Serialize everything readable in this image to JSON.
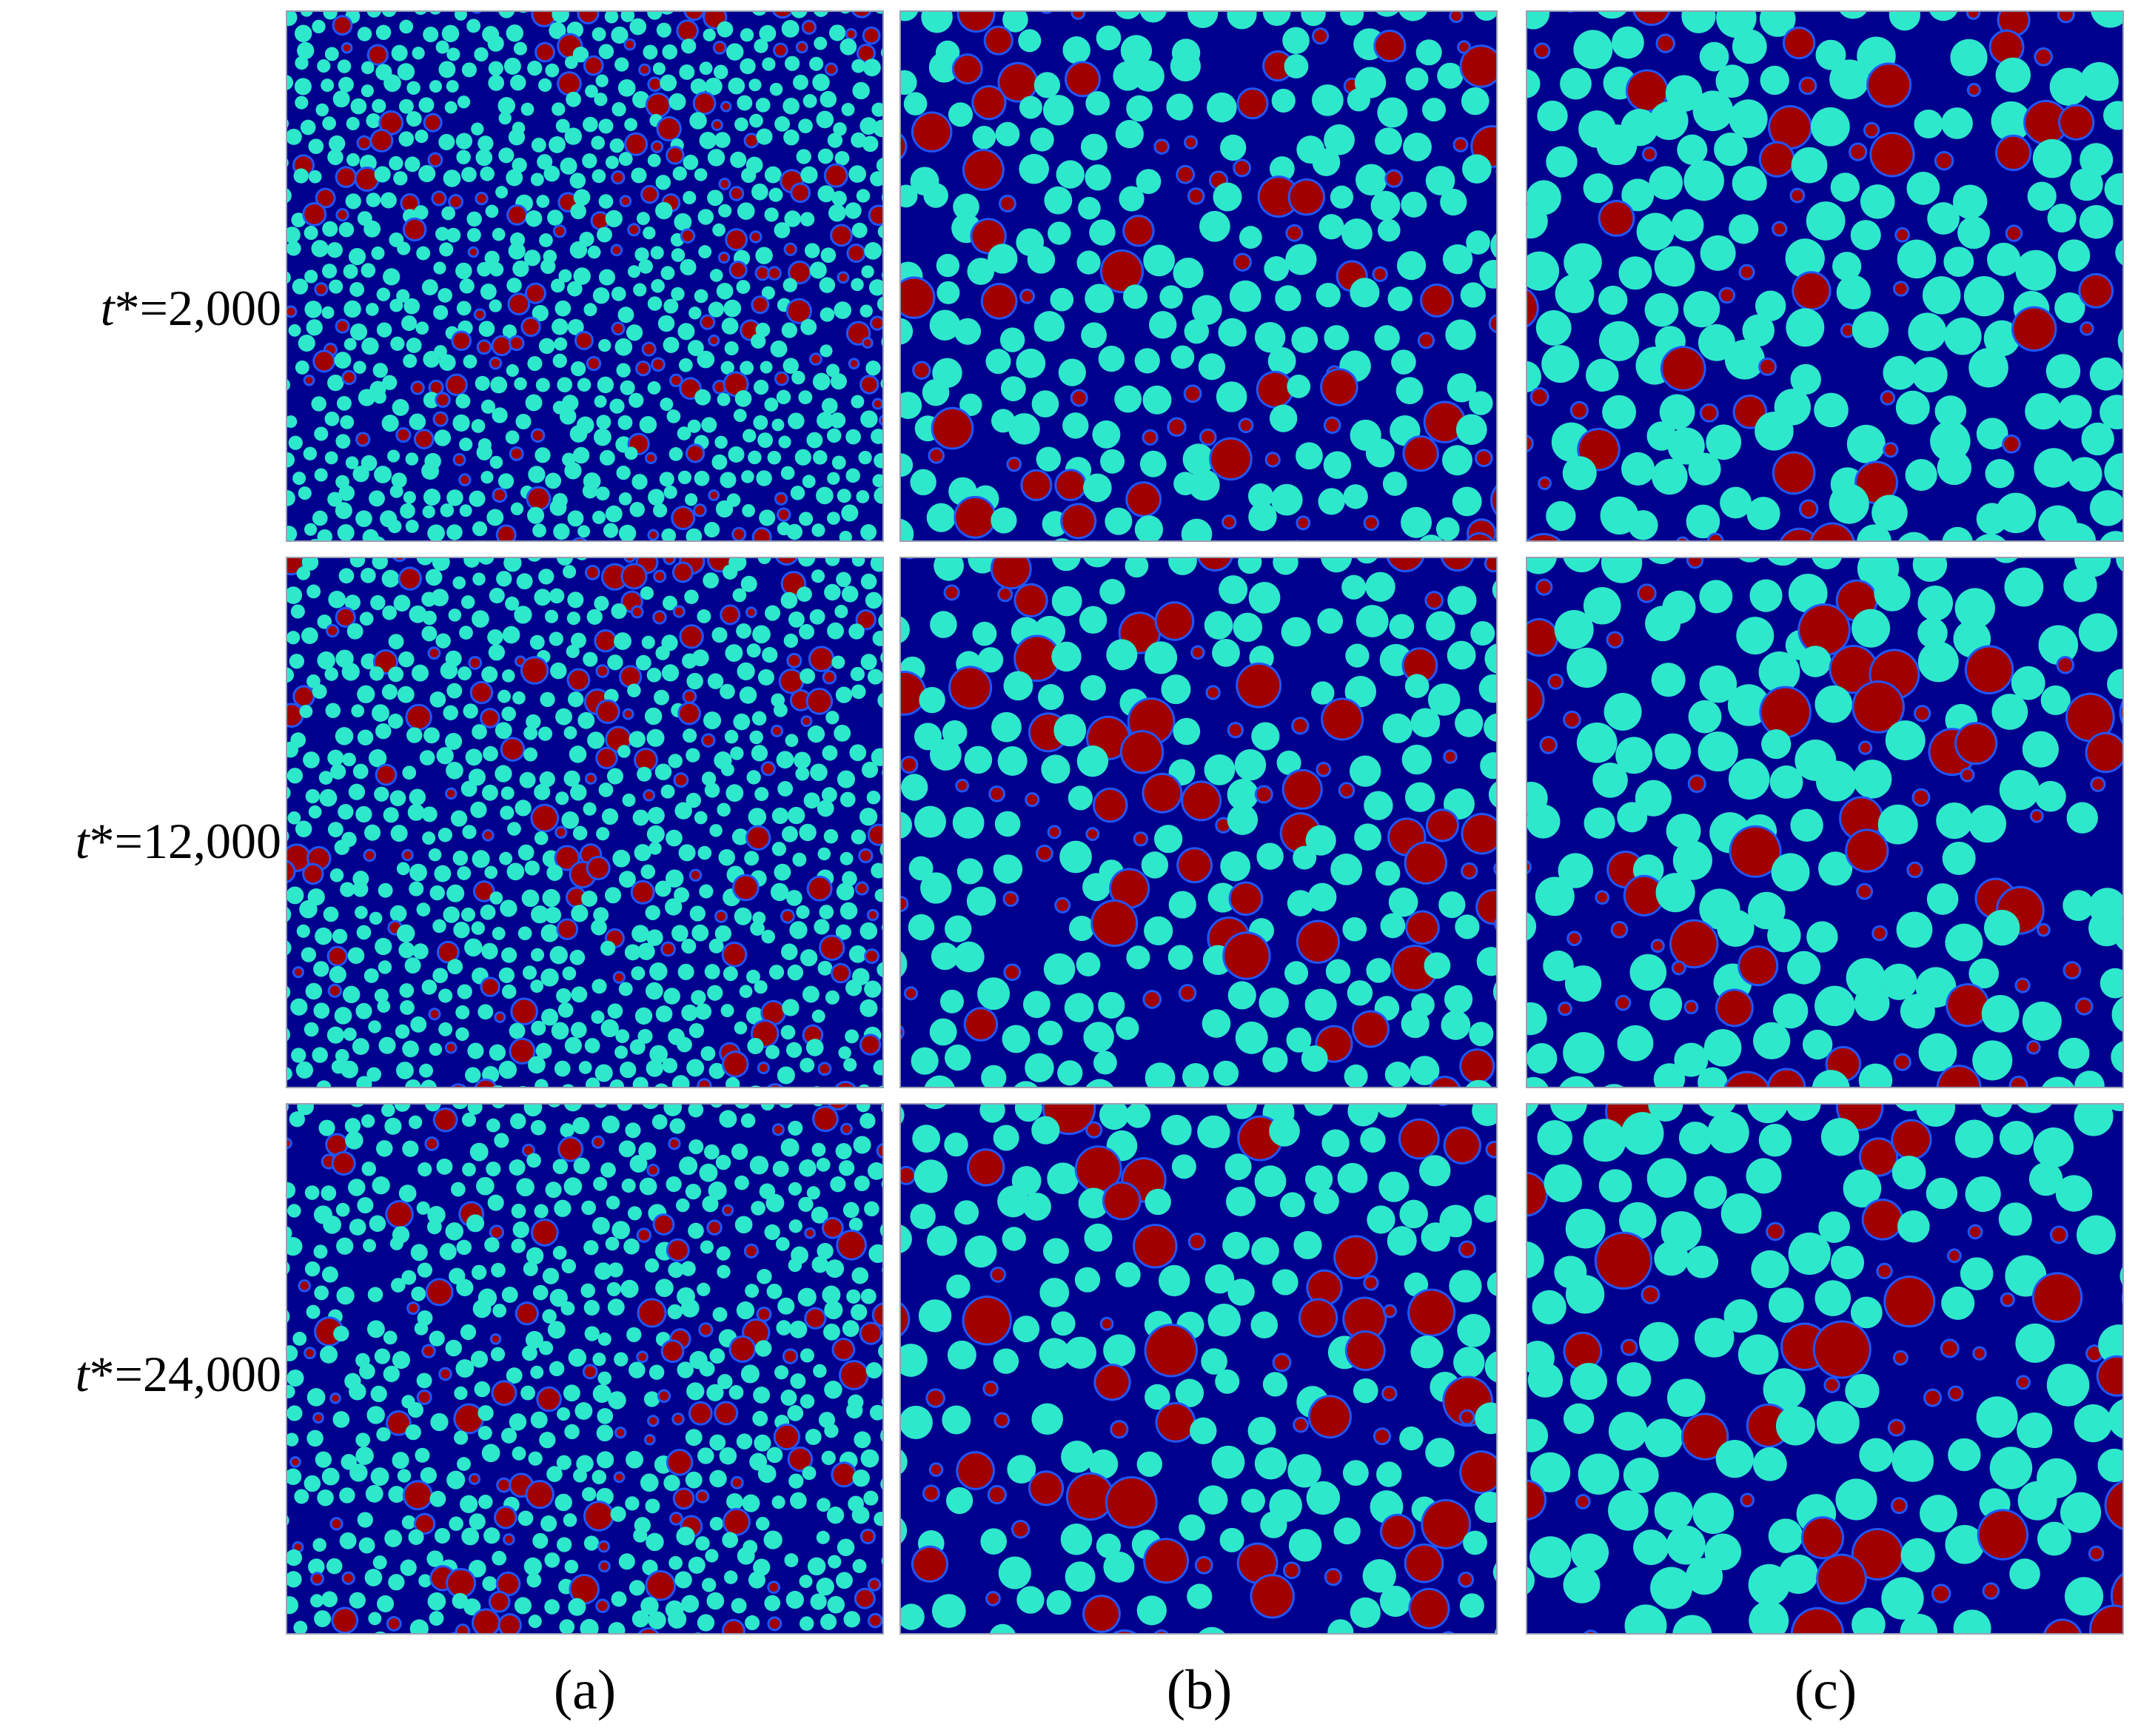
{
  "figure": {
    "rows": [
      {
        "label_var": "t",
        "label_rest": "*=2,000"
      },
      {
        "label_var": "t",
        "label_rest": "*=12,000"
      },
      {
        "label_var": "t",
        "label_rest": "*=24,000"
      }
    ],
    "columns": [
      {
        "label": "(a)"
      },
      {
        "label": "(b)"
      },
      {
        "label": "(c)"
      }
    ],
    "colors": {
      "background": "#00008f",
      "cyan_phase": "#2ee8cc",
      "red_phase": "#a00000",
      "halo": "#1f56ff"
    }
  }
}
